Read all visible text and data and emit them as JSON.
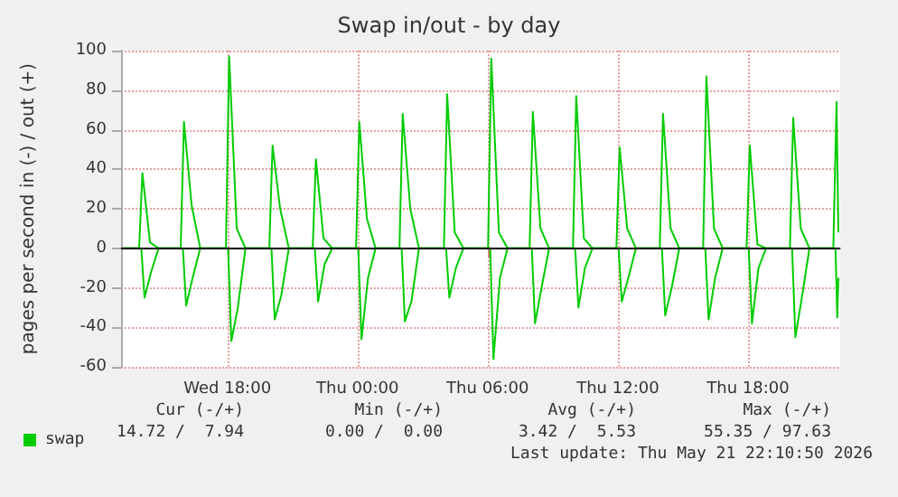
{
  "chart_data": {
    "type": "line",
    "title": "Swap in/out - by day",
    "ylabel": "pages per second in (-) / out (+)",
    "xlim": [
      "2026-05-20T13:06",
      "2026-05-21T22:15"
    ],
    "xticks": [
      {
        "value": "2026-05-20T18:00",
        "label": "Wed 18:00"
      },
      {
        "value": "2026-05-21T00:00",
        "label": "Thu 00:00"
      },
      {
        "value": "2026-05-21T06:00",
        "label": "Thu 06:00"
      },
      {
        "value": "2026-05-21T12:00",
        "label": "Thu 12:00"
      },
      {
        "value": "2026-05-21T18:00",
        "label": "Thu 18:00"
      }
    ],
    "ylim": [
      -60,
      100
    ],
    "yticks": [
      -60,
      -40,
      -20,
      0,
      20,
      40,
      60,
      80,
      100
    ],
    "grid": true,
    "legend": "bottom left",
    "marker": "none",
    "line_style": "solid",
    "ref_lines": [
      {
        "axis": "y",
        "value": 0,
        "color": "#000000"
      }
    ],
    "series": [
      {
        "name": "swap",
        "color": "#00cc00",
        "x": [
          "2026-05-20T13:12",
          "2026-05-20T13:56",
          "2026-05-20T14:05",
          "2026-05-20T14:26",
          "2026-05-20T14:50",
          "2026-05-20T15:51",
          "2026-05-20T16:00",
          "2026-05-20T16:21",
          "2026-05-20T16:45",
          "2026-05-20T17:56",
          "2026-05-20T18:05",
          "2026-05-20T18:26",
          "2026-05-20T18:50",
          "2026-05-20T19:56",
          "2026-05-20T20:05",
          "2026-05-20T20:26",
          "2026-05-20T20:50",
          "2026-05-20T21:56",
          "2026-05-20T22:05",
          "2026-05-20T22:26",
          "2026-05-20T22:50",
          "2026-05-20T23:56",
          "2026-05-21T00:05",
          "2026-05-21T00:26",
          "2026-05-21T00:50",
          "2026-05-21T01:56",
          "2026-05-21T02:05",
          "2026-05-21T02:26",
          "2026-05-21T02:50",
          "2026-05-21T03:59",
          "2026-05-21T04:08",
          "2026-05-21T04:29",
          "2026-05-21T04:53",
          "2026-05-21T06:01",
          "2026-05-21T06:10",
          "2026-05-21T06:31",
          "2026-05-21T06:55",
          "2026-05-21T07:56",
          "2026-05-21T08:05",
          "2026-05-21T08:26",
          "2026-05-21T08:50",
          "2026-05-21T09:56",
          "2026-05-21T10:05",
          "2026-05-21T10:26",
          "2026-05-21T10:50",
          "2026-05-21T11:56",
          "2026-05-21T12:05",
          "2026-05-21T12:26",
          "2026-05-21T12:50",
          "2026-05-21T13:56",
          "2026-05-21T14:05",
          "2026-05-21T14:26",
          "2026-05-21T14:50",
          "2026-05-21T15:56",
          "2026-05-21T16:05",
          "2026-05-21T16:26",
          "2026-05-21T16:50",
          "2026-05-21T17:56",
          "2026-05-21T18:05",
          "2026-05-21T18:26",
          "2026-05-21T18:50",
          "2026-05-21T19:56",
          "2026-05-21T20:05",
          "2026-05-21T20:26",
          "2026-05-21T20:50",
          "2026-05-21T21:56",
          "2026-05-21T22:05",
          "2026-05-21T22:10"
        ],
        "values": [
          0,
          0,
          38,
          3,
          0,
          0,
          64,
          22,
          0,
          0,
          97,
          10,
          0,
          0,
          52,
          20,
          0,
          0,
          45,
          5,
          0,
          0,
          64,
          15,
          0,
          0,
          68,
          20,
          0,
          0,
          78,
          8,
          0,
          0,
          96,
          8,
          0,
          0,
          69,
          10,
          0,
          0,
          77,
          5,
          0,
          0,
          51,
          10,
          0,
          0,
          68,
          10,
          0,
          0,
          87,
          10,
          0,
          0,
          52,
          2,
          0,
          0,
          66,
          10,
          0,
          0,
          74,
          8
        ]
      },
      {
        "color": "#00cc00",
        "x": [
          "2026-05-20T13:12",
          "2026-05-20T14:02",
          "2026-05-20T14:11",
          "2026-05-20T14:29",
          "2026-05-20T14:50",
          "2026-05-20T15:57",
          "2026-05-20T16:06",
          "2026-05-20T16:24",
          "2026-05-20T16:45",
          "2026-05-20T18:02",
          "2026-05-20T18:11",
          "2026-05-20T18:29",
          "2026-05-20T18:50",
          "2026-05-20T20:02",
          "2026-05-20T20:11",
          "2026-05-20T20:29",
          "2026-05-20T20:50",
          "2026-05-20T22:02",
          "2026-05-20T22:11",
          "2026-05-20T22:29",
          "2026-05-20T22:50",
          "2026-05-21T00:02",
          "2026-05-21T00:11",
          "2026-05-21T00:29",
          "2026-05-21T00:50",
          "2026-05-21T02:02",
          "2026-05-21T02:11",
          "2026-05-21T02:29",
          "2026-05-21T02:50",
          "2026-05-21T04:05",
          "2026-05-21T04:14",
          "2026-05-21T04:32",
          "2026-05-21T04:53",
          "2026-05-21T06:07",
          "2026-05-21T06:16",
          "2026-05-21T06:34",
          "2026-05-21T06:55",
          "2026-05-21T08:02",
          "2026-05-21T08:11",
          "2026-05-21T08:29",
          "2026-05-21T08:50",
          "2026-05-21T10:02",
          "2026-05-21T10:11",
          "2026-05-21T10:29",
          "2026-05-21T10:50",
          "2026-05-21T12:02",
          "2026-05-21T12:11",
          "2026-05-21T12:29",
          "2026-05-21T12:50",
          "2026-05-21T14:02",
          "2026-05-21T14:11",
          "2026-05-21T14:29",
          "2026-05-21T14:50",
          "2026-05-21T16:02",
          "2026-05-21T16:11",
          "2026-05-21T16:29",
          "2026-05-21T16:50",
          "2026-05-21T18:02",
          "2026-05-21T18:11",
          "2026-05-21T18:29",
          "2026-05-21T18:50",
          "2026-05-21T20:02",
          "2026-05-21T20:11",
          "2026-05-21T20:29",
          "2026-05-21T20:50",
          "2026-05-21T22:02",
          "2026-05-21T22:07",
          "2026-05-21T22:10"
        ],
        "values": [
          0,
          0,
          -25,
          -12,
          0,
          0,
          -29,
          -15,
          0,
          0,
          -47,
          -30,
          0,
          0,
          -36,
          -24,
          0,
          0,
          -27,
          -8,
          0,
          0,
          -46,
          -15,
          0,
          0,
          -37,
          -27,
          0,
          0,
          -25,
          -10,
          0,
          0,
          -56,
          -15,
          0,
          0,
          -38,
          -20,
          0,
          0,
          -30,
          -10,
          0,
          0,
          -27,
          -15,
          0,
          0,
          -34,
          -20,
          0,
          0,
          -36,
          -15,
          0,
          0,
          -38,
          -10,
          0,
          0,
          -45,
          -25,
          0,
          0,
          -35,
          -15
        ]
      }
    ],
    "annotations": [
      "Cur (-/+)",
      "Min (-/+)",
      "Avg (-/+)",
      "Max (-/+)",
      "14.72 /  7.94",
      "0.00 /  0.00",
      "3.42 /  5.53",
      "55.35 / 97.63",
      "Last update: Thu May 21 22:10:50 2026"
    ]
  }
}
